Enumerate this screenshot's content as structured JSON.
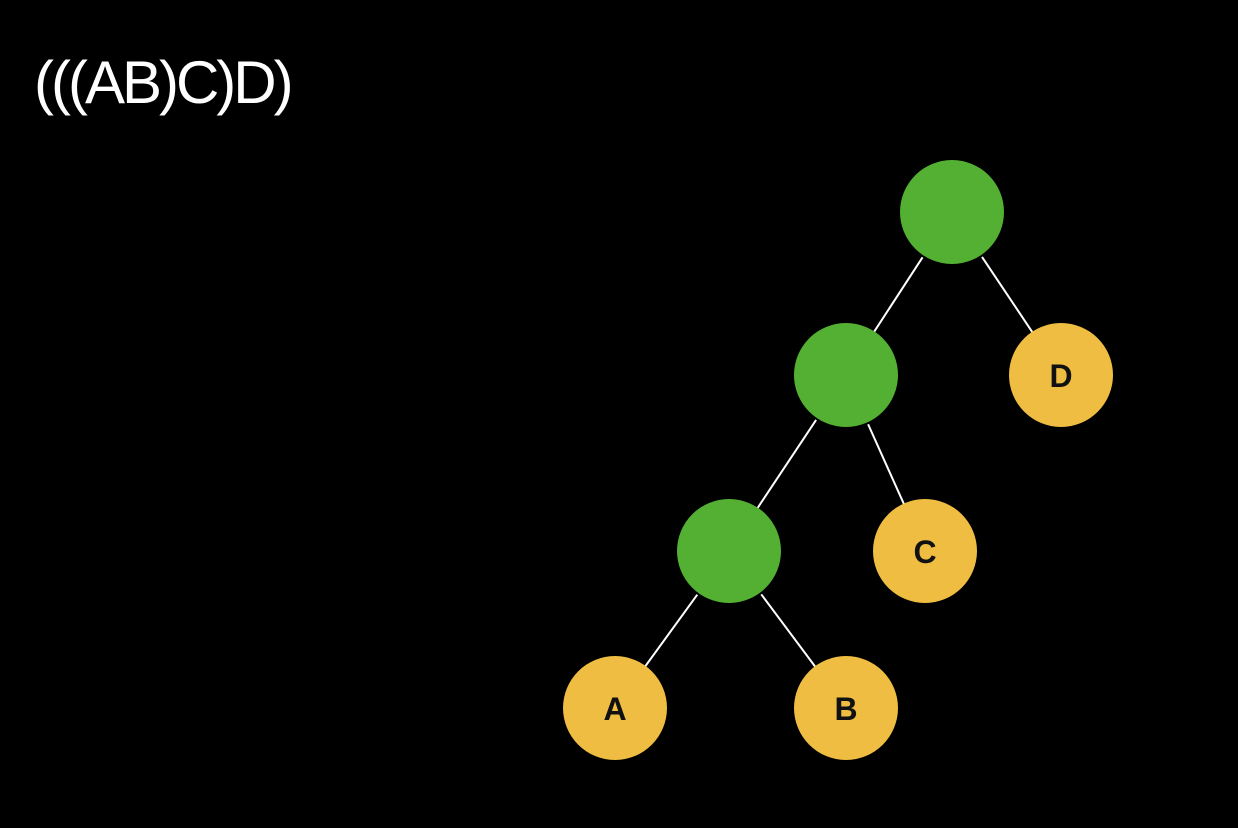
{
  "title": "(((AB)C)D)",
  "colors": {
    "background": "#000000",
    "internal_node": "#53b032",
    "leaf_node": "#efbd41",
    "edge": "#ffffff",
    "label": "#111111"
  },
  "tree": {
    "nodes": [
      {
        "id": "root",
        "kind": "internal",
        "label": ""
      },
      {
        "id": "n_abc",
        "kind": "internal",
        "label": ""
      },
      {
        "id": "n_ab",
        "kind": "internal",
        "label": ""
      },
      {
        "id": "leaf_a",
        "kind": "leaf",
        "label": "A"
      },
      {
        "id": "leaf_b",
        "kind": "leaf",
        "label": "B"
      },
      {
        "id": "leaf_c",
        "kind": "leaf",
        "label": "C"
      },
      {
        "id": "leaf_d",
        "kind": "leaf",
        "label": "D"
      }
    ],
    "edges": [
      {
        "from": "root",
        "to": "n_abc"
      },
      {
        "from": "root",
        "to": "leaf_d"
      },
      {
        "from": "n_abc",
        "to": "n_ab"
      },
      {
        "from": "n_abc",
        "to": "leaf_c"
      },
      {
        "from": "n_ab",
        "to": "leaf_a"
      },
      {
        "from": "n_ab",
        "to": "leaf_b"
      }
    ]
  }
}
